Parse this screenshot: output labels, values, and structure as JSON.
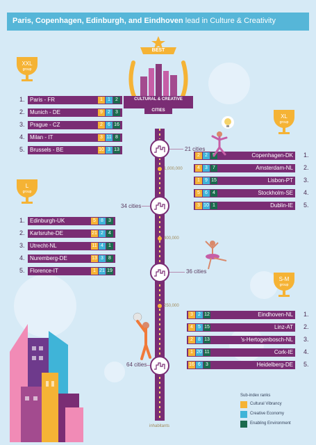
{
  "header": {
    "cities": "Paris, Copenhagen, Edinburgh, and Eindhoven",
    "rest": "lead in Culture & Creativity"
  },
  "badge": {
    "best": "BEST",
    "line1": "CULTURAL & CREATIVE",
    "line2": "CITIES"
  },
  "colors": {
    "cultural_vibrancy": "#f5b335",
    "creative_economy": "#3fb4d8",
    "enabling_environment": "#1b6b4e",
    "bar": "#7a2d74",
    "background": "#d6eaf6"
  },
  "chart_data": {
    "type": "table",
    "groups": [
      {
        "name": "XXL",
        "label": "group",
        "cities_count": "",
        "rows": [
          {
            "rank": "1.",
            "city": "Paris - FR",
            "cv": "1",
            "ce": "1",
            "ee": "2"
          },
          {
            "rank": "2.",
            "city": "Munich - DE",
            "cv": "9",
            "ce": "2",
            "ee": "3"
          },
          {
            "rank": "3.",
            "city": "Prague - CZ",
            "cv": "2",
            "ce": "6",
            "ee": "16"
          },
          {
            "rank": "4.",
            "city": "Milan - IT",
            "cv": "3",
            "ce": "11",
            "ee": "8"
          },
          {
            "rank": "5.",
            "city": "Brussels - BE",
            "cv": "10",
            "ce": "3",
            "ee": "13"
          }
        ]
      },
      {
        "name": "XL",
        "label": "group",
        "cities_count": "21 cities",
        "rows": [
          {
            "rank": "1.",
            "city": "Copenhagen-DK",
            "cv": "2",
            "ce": "2",
            "ee": "5"
          },
          {
            "rank": "2.",
            "city": "Amsterdam-NL",
            "cv": "4",
            "ce": "3",
            "ee": "7"
          },
          {
            "rank": "3.",
            "city": "Lisbon-PT",
            "cv": "1",
            "ce": "9",
            "ee": "15"
          },
          {
            "rank": "4.",
            "city": "Stockholm-SE",
            "cv": "5",
            "ce": "6",
            "ee": "4"
          },
          {
            "rank": "5.",
            "city": "Dublin-IE",
            "cv": "3",
            "ce": "10",
            "ee": "1"
          }
        ]
      },
      {
        "name": "L",
        "label": "group",
        "cities_count": "34 cities",
        "rows": [
          {
            "rank": "1.",
            "city": "Edinburgh-UK",
            "cv": "5",
            "ce": "8",
            "ee": "3"
          },
          {
            "rank": "2.",
            "city": "Karlsruhe-DE",
            "cv": "21",
            "ce": "2",
            "ee": "4"
          },
          {
            "rank": "3.",
            "city": "Utrecht-NL",
            "cv": "11",
            "ce": "4",
            "ee": "1"
          },
          {
            "rank": "4.",
            "city": "Nuremberg-DE",
            "cv": "13",
            "ce": "3",
            "ee": "8"
          },
          {
            "rank": "5.",
            "city": "Florence-IT",
            "cv": "1",
            "ce": "21",
            "ee": "19"
          }
        ]
      },
      {
        "name": "S-M",
        "label": "group",
        "cities_count": "64 cities",
        "rows": [
          {
            "rank": "1.",
            "city": "Eindhoven-NL",
            "cv": "3",
            "ce": "2",
            "ee": "12"
          },
          {
            "rank": "2.",
            "city": "Linz-AT",
            "cv": "4",
            "ce": "5",
            "ee": "15"
          },
          {
            "rank": "3.",
            "city": "'s-Hertogenbosch-NL",
            "cv": "2",
            "ce": "8",
            "ee": "13"
          },
          {
            "rank": "4.",
            "city": "Cork-IE",
            "cv": "1",
            "ce": "20",
            "ee": "11"
          },
          {
            "rank": "5.",
            "city": "Heidelberg-DE",
            "cv": "16",
            "ce": "6",
            "ee": "3"
          }
        ]
      }
    ],
    "population_thresholds": [
      "1,000,000",
      "400,000",
      "250,000"
    ],
    "axis_label": "inhabitants",
    "extra_count": "36 cities"
  },
  "legend": {
    "title": "Sub-index ranks",
    "items": [
      "Cultural Vibrancy",
      "Creative Economy",
      "Enabling Environment"
    ]
  }
}
